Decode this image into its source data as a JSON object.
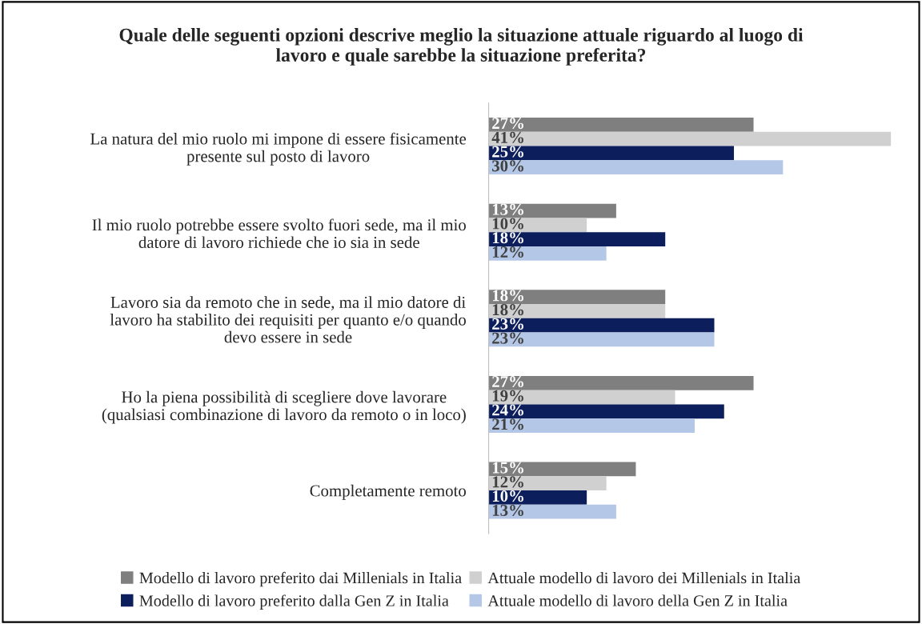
{
  "chart_data": {
    "type": "bar",
    "orientation": "horizontal",
    "title": "Quale delle seguenti opzioni descrive meglio la situazione attuale riguardo al luogo di\nlavoro e quale sarebbe la situazione preferita?",
    "categories": [
      "La natura del mio ruolo mi impone di essere fisicamente\npresente sul posto di lavoro",
      "Il mio ruolo potrebbe essere svolto fuori sede, ma il mio\ndatore di lavoro richiede che io sia in sede",
      "Lavoro sia da remoto che in sede, ma il mio datore di\nlavoro ha stabilito dei requisiti per quanto e/o quando\ndevo essere in sede",
      "Ho la piena possibilità di scegliere dove lavorare\n(qualsiasi combinazione di lavoro da remoto o in loco)",
      "Completamente remoto"
    ],
    "series": [
      {
        "name": "Modello di lavoro preferito dai Millenials in Italia",
        "color": "#7f7f7f",
        "values": [
          27,
          13,
          18,
          27,
          15
        ],
        "value_labels": [
          "27%",
          "13%",
          "18%",
          "27%",
          "15%"
        ]
      },
      {
        "name": "Attuale modello di lavoro dei Millenials in Italia",
        "color": "#d0d0d0",
        "values": [
          41,
          10,
          18,
          19,
          12
        ],
        "value_labels": [
          "41%",
          "10%",
          "18%",
          "19%",
          "12%"
        ]
      },
      {
        "name": "Modello di lavoro preferito dalla Gen Z in Italia",
        "color": "#0c1f5c",
        "values": [
          25,
          18,
          23,
          24,
          10
        ],
        "value_labels": [
          "25%",
          "18%",
          "23%",
          "24%",
          "10%"
        ]
      },
      {
        "name": "Attuale modello di lavoro della Gen Z in Italia",
        "color": "#b4c7e7",
        "values": [
          30,
          12,
          23,
          21,
          13
        ],
        "value_labels": [
          "30%",
          "12%",
          "23%",
          "21%",
          "13%"
        ]
      }
    ],
    "legend": "bottom",
    "grid": false
  }
}
